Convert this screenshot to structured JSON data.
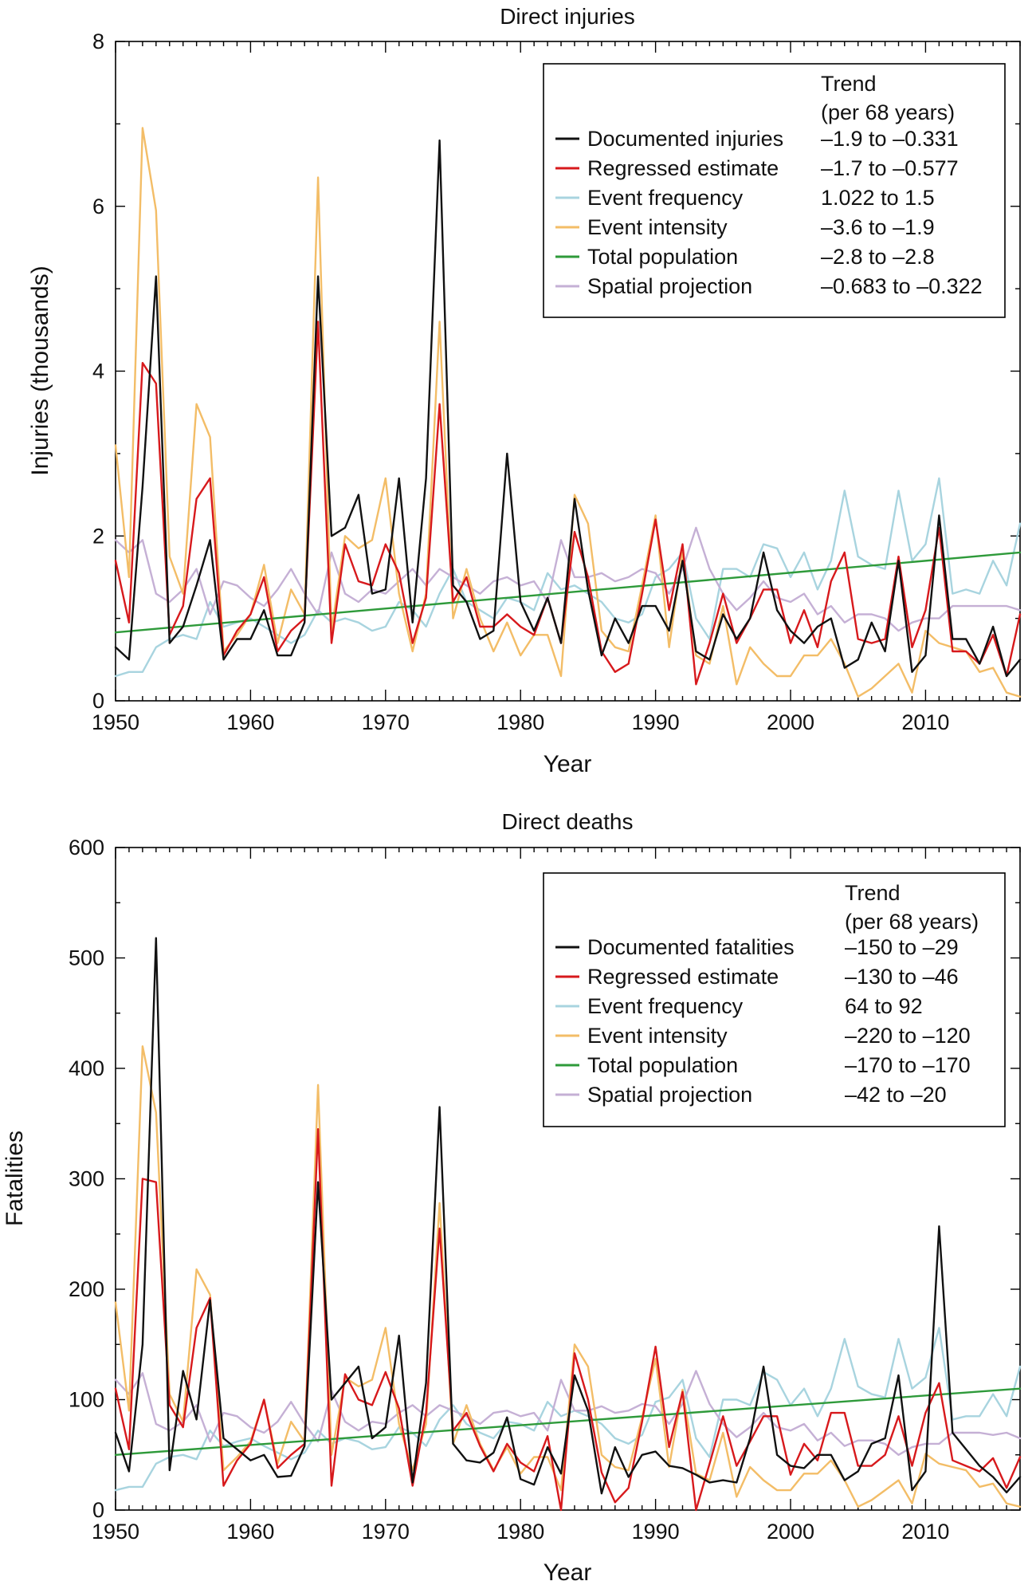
{
  "colors": {
    "documented": "#111111",
    "regressed": "#d7191c",
    "frequency": "#a8d4df",
    "intensity": "#f3bd67",
    "population": "#2e9a3a",
    "spatial": "#c5b0d5"
  },
  "chart_data": [
    {
      "type": "line",
      "title": "Direct injuries",
      "xlabel": "Year",
      "ylabel": "Injuries (thousands)",
      "xlim": [
        1950,
        2017
      ],
      "ylim": [
        0,
        8
      ],
      "xticks": [
        1950,
        1960,
        1970,
        1980,
        1990,
        2000,
        2010
      ],
      "yticks": [
        0,
        2,
        4,
        6,
        8
      ],
      "legend_position": "top-right",
      "trend_header": [
        "Trend",
        "(per 68 years)"
      ],
      "x_start": 1950,
      "series": [
        {
          "key": "frequency",
          "name": "Event frequency",
          "trend": "1.022 to 1.5",
          "values": [
            0.3,
            0.35,
            0.35,
            0.65,
            0.75,
            0.8,
            0.75,
            1.2,
            0.9,
            0.95,
            1.0,
            0.9,
            0.8,
            0.7,
            0.8,
            1.1,
            0.95,
            1.0,
            0.95,
            0.85,
            0.9,
            1.2,
            1.1,
            0.9,
            1.3,
            1.6,
            1.2,
            1.1,
            1.0,
            1.25,
            1.2,
            1.1,
            1.55,
            1.35,
            1.4,
            1.3,
            1.2,
            1.0,
            0.95,
            1.05,
            1.5,
            1.6,
            1.8,
            1.0,
            0.75,
            1.6,
            1.6,
            1.5,
            1.9,
            1.85,
            1.5,
            1.8,
            1.35,
            1.7,
            2.55,
            1.75,
            1.65,
            1.6,
            2.55,
            1.7,
            1.9,
            2.7,
            1.3,
            1.35,
            1.3,
            1.7,
            1.4,
            2.15
          ]
        },
        {
          "key": "spatial",
          "name": "Spatial projection",
          "trend": "–0.683 to –0.322",
          "values": [
            1.95,
            1.8,
            1.95,
            1.3,
            1.2,
            1.35,
            1.6,
            1.05,
            1.45,
            1.4,
            1.25,
            1.15,
            1.35,
            1.6,
            1.3,
            1.05,
            1.8,
            1.3,
            1.2,
            1.35,
            1.3,
            1.45,
            1.6,
            1.4,
            1.6,
            1.5,
            1.4,
            1.3,
            1.45,
            1.5,
            1.4,
            1.45,
            1.2,
            1.95,
            1.5,
            1.5,
            1.55,
            1.45,
            1.5,
            1.6,
            1.55,
            1.3,
            1.6,
            2.1,
            1.6,
            1.3,
            1.1,
            1.25,
            1.45,
            1.25,
            1.2,
            1.3,
            1.05,
            1.15,
            0.95,
            1.05,
            1.05,
            1.0,
            0.85,
            0.95,
            1.0,
            1.0,
            1.15,
            1.15,
            1.15,
            1.15,
            1.15,
            1.1
          ]
        },
        {
          "key": "intensity",
          "name": "Event intensity",
          "trend": "–3.6 to –1.9",
          "values": [
            3.1,
            1.5,
            6.95,
            5.95,
            1.75,
            1.3,
            3.6,
            3.2,
            0.6,
            0.8,
            1.05,
            1.65,
            0.7,
            1.35,
            1.05,
            6.35,
            0.85,
            2.0,
            1.85,
            1.95,
            2.7,
            1.3,
            0.6,
            1.3,
            4.6,
            1.0,
            1.6,
            1.0,
            0.6,
            0.95,
            0.55,
            0.8,
            0.8,
            0.3,
            2.5,
            2.15,
            0.85,
            0.65,
            0.6,
            1.4,
            2.25,
            0.65,
            1.8,
            0.55,
            0.45,
            1.15,
            0.2,
            0.65,
            0.45,
            0.3,
            0.3,
            0.55,
            0.55,
            0.75,
            0.45,
            0.05,
            0.15,
            0.3,
            0.45,
            0.1,
            0.85,
            0.7,
            0.65,
            0.6,
            0.35,
            0.4,
            0.1,
            0.05
          ]
        },
        {
          "key": "population",
          "name": "Total population",
          "trend": "–2.8 to –2.8",
          "values": [
            0.83,
            1.8
          ]
        },
        {
          "key": "regressed",
          "name": "Regressed estimate",
          "trend": "–1.7 to –0.577",
          "values": [
            1.7,
            0.95,
            4.1,
            3.85,
            0.8,
            1.15,
            2.45,
            2.7,
            0.55,
            0.85,
            1.05,
            1.5,
            0.6,
            0.85,
            1.0,
            4.6,
            0.7,
            1.9,
            1.45,
            1.4,
            1.9,
            1.55,
            0.7,
            1.25,
            3.6,
            1.2,
            1.5,
            0.9,
            0.9,
            1.05,
            0.9,
            0.8,
            1.25,
            0.7,
            2.05,
            1.5,
            0.6,
            0.35,
            0.45,
            1.3,
            2.2,
            1.1,
            1.9,
            0.2,
            0.7,
            1.3,
            0.7,
            1.0,
            1.35,
            1.35,
            0.7,
            1.1,
            0.65,
            1.45,
            1.8,
            0.75,
            0.7,
            0.75,
            1.75,
            0.65,
            1.1,
            2.1,
            0.6,
            0.6,
            0.45,
            0.8,
            0.3,
            1.05
          ]
        },
        {
          "key": "documented",
          "name": "Documented injuries",
          "trend": "–1.9 to –0.331",
          "values": [
            0.65,
            0.5,
            2.6,
            5.15,
            0.7,
            0.9,
            1.4,
            1.95,
            0.5,
            0.75,
            0.75,
            1.1,
            0.55,
            0.55,
            0.95,
            5.15,
            2.0,
            2.1,
            2.5,
            1.3,
            1.35,
            2.7,
            0.95,
            2.7,
            6.8,
            1.4,
            1.2,
            0.75,
            0.85,
            3.0,
            1.2,
            0.85,
            1.25,
            0.7,
            2.45,
            1.35,
            0.55,
            1.0,
            0.7,
            1.15,
            1.15,
            0.85,
            1.7,
            0.6,
            0.5,
            1.05,
            0.75,
            1.0,
            1.8,
            1.1,
            0.85,
            0.7,
            0.9,
            1.0,
            0.4,
            0.5,
            0.95,
            0.6,
            1.7,
            0.35,
            0.55,
            2.25,
            0.75,
            0.75,
            0.45,
            0.9,
            0.3,
            0.5
          ]
        }
      ],
      "legend_order": [
        "documented",
        "regressed",
        "frequency",
        "intensity",
        "population",
        "spatial"
      ]
    },
    {
      "type": "line",
      "title": "Direct deaths",
      "xlabel": "Year",
      "ylabel": "Fatalities",
      "xlim": [
        1950,
        2017
      ],
      "ylim": [
        0,
        600
      ],
      "xticks": [
        1950,
        1960,
        1970,
        1980,
        1990,
        2000,
        2010
      ],
      "yticks": [
        0,
        100,
        200,
        300,
        400,
        500,
        600
      ],
      "legend_position": "top-right",
      "trend_header": [
        "Trend",
        "(per 68 years)"
      ],
      "x_start": 1950,
      "series": [
        {
          "key": "frequency",
          "name": "Event frequency",
          "trend": "64 to 92",
          "values": [
            18,
            21,
            21,
            42,
            48,
            50,
            46,
            72,
            58,
            62,
            65,
            58,
            52,
            46,
            52,
            72,
            60,
            65,
            62,
            55,
            57,
            75,
            70,
            58,
            82,
            95,
            78,
            70,
            65,
            80,
            78,
            72,
            98,
            85,
            90,
            85,
            78,
            65,
            60,
            68,
            98,
            102,
            118,
            65,
            48,
            100,
            100,
            95,
            125,
            118,
            95,
            110,
            85,
            110,
            155,
            112,
            105,
            102,
            155,
            110,
            120,
            165,
            82,
            85,
            85,
            105,
            85,
            130
          ]
        },
        {
          "key": "spatial",
          "name": "Spatial projection",
          "trend": "–42 to –20",
          "values": [
            118,
            105,
            124,
            78,
            72,
            80,
            95,
            62,
            88,
            85,
            75,
            70,
            80,
            98,
            78,
            62,
            108,
            80,
            72,
            80,
            78,
            88,
            95,
            85,
            95,
            90,
            85,
            78,
            88,
            90,
            85,
            88,
            72,
            118,
            90,
            90,
            94,
            88,
            90,
            96,
            94,
            78,
            96,
            126,
            96,
            78,
            66,
            75,
            88,
            75,
            72,
            78,
            63,
            70,
            58,
            63,
            63,
            60,
            50,
            57,
            60,
            60,
            70,
            70,
            70,
            68,
            70,
            65
          ]
        },
        {
          "key": "intensity",
          "name": "Event intensity",
          "trend": "–220 to –120",
          "values": [
            188,
            90,
            420,
            360,
            105,
            80,
            218,
            195,
            36,
            48,
            62,
            100,
            42,
            80,
            62,
            385,
            50,
            120,
            112,
            118,
            165,
            78,
            36,
            78,
            278,
            60,
            95,
            60,
            36,
            57,
            33,
            48,
            48,
            18,
            150,
            130,
            50,
            39,
            36,
            84,
            137,
            39,
            109,
            33,
            27,
            70,
            12,
            39,
            27,
            18,
            18,
            33,
            33,
            45,
            27,
            3,
            9,
            18,
            27,
            6,
            51,
            42,
            39,
            36,
            21,
            24,
            6,
            3
          ]
        },
        {
          "key": "population",
          "name": "Total population",
          "trend": "–170 to –170",
          "values": [
            50,
            110
          ]
        },
        {
          "key": "regressed",
          "name": "Regressed estimate",
          "trend": "–130 to –46",
          "values": [
            110,
            55,
            300,
            297,
            95,
            75,
            165,
            192,
            22,
            45,
            60,
            100,
            38,
            50,
            60,
            345,
            22,
            123,
            100,
            95,
            125,
            92,
            22,
            88,
            255,
            72,
            88,
            58,
            35,
            60,
            43,
            35,
            67,
            0,
            142,
            100,
            34,
            7,
            20,
            80,
            148,
            57,
            107,
            0,
            42,
            85,
            40,
            62,
            85,
            85,
            32,
            60,
            45,
            88,
            88,
            40,
            40,
            50,
            85,
            40,
            88,
            115,
            45,
            40,
            35,
            47,
            20,
            48
          ]
        },
        {
          "key": "documented",
          "name": "Documented fatalities",
          "trend": "–150 to –29",
          "values": [
            70,
            35,
            150,
            518,
            36,
            126,
            82,
            190,
            65,
            55,
            45,
            50,
            30,
            31,
            58,
            297,
            100,
            115,
            130,
            65,
            75,
            158,
            25,
            115,
            365,
            60,
            45,
            43,
            52,
            84,
            28,
            23,
            57,
            33,
            122,
            90,
            15,
            57,
            30,
            50,
            53,
            40,
            38,
            32,
            25,
            27,
            25,
            65,
            130,
            50,
            40,
            38,
            50,
            50,
            27,
            35,
            60,
            65,
            122,
            18,
            35,
            257,
            70,
            55,
            40,
            30,
            16,
            30
          ]
        }
      ],
      "legend_order": [
        "documented",
        "regressed",
        "frequency",
        "intensity",
        "population",
        "spatial"
      ]
    }
  ]
}
